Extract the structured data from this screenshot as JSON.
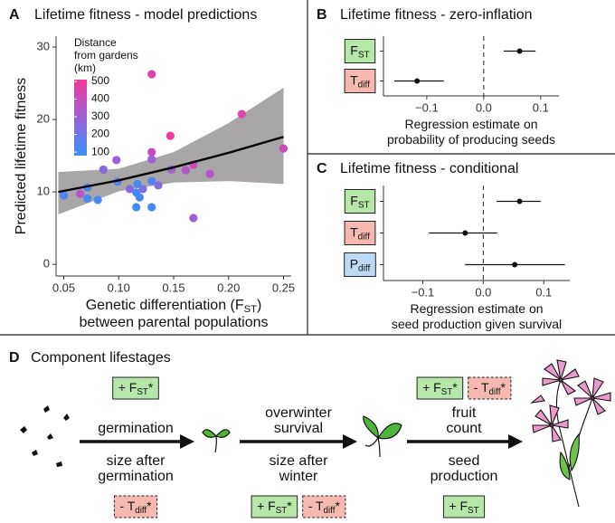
{
  "chart_data": [
    {
      "type": "scatter",
      "panel": "A",
      "title": "Lifetime fitness - model predictions",
      "xlabel": [
        {
          "text": "Genetic differentiation (F",
          "sub": "ST",
          "suffix": ")"
        },
        {
          "text": "between parental populations"
        }
      ],
      "ylabel": "Predicted lifetime fitness",
      "xlim": [
        0.043,
        0.257
      ],
      "xticks": [
        {
          "value": 0.05,
          "label": "0.05"
        },
        {
          "value": 0.1,
          "label": "0.10"
        },
        {
          "value": 0.15,
          "label": "0.15"
        },
        {
          "value": 0.2,
          "label": "0.20"
        },
        {
          "value": 0.25,
          "label": "0.25"
        }
      ],
      "ylim": [
        -1.6,
        31.5
      ],
      "yticks": [
        0,
        10,
        20,
        30
      ],
      "x": [
        0.05,
        0.065,
        0.0715,
        0.0715,
        0.081,
        0.086,
        0.098,
        0.099,
        0.11,
        0.116,
        0.117,
        0.116,
        0.119,
        0.122,
        0.13,
        0.13,
        0.13,
        0.13,
        0.13,
        0.136,
        0.147,
        0.148,
        0.161,
        0.168,
        0.168,
        0.183,
        0.212,
        0.25
      ],
      "y": [
        9.5,
        9.75,
        10.6,
        9.1,
        8.9,
        13.1,
        14.4,
        11.4,
        10.4,
        9.9,
        11.1,
        7.9,
        9.25,
        10.4,
        7.9,
        26.25,
        15.5,
        14.5,
        11.5,
        10.9,
        17.75,
        13.1,
        13,
        13.75,
        6.4,
        12.5,
        20.75,
        16
      ],
      "distance": [
        150,
        350,
        150,
        120,
        130,
        250,
        300,
        150,
        250,
        120,
        130,
        110,
        120,
        230,
        120,
        450,
        400,
        300,
        150,
        250,
        500,
        300,
        350,
        400,
        300,
        350,
        450,
        400
      ],
      "legend_title": [
        "Distance",
        "from gardens",
        "(km)"
      ],
      "color_lim": [
        80,
        510
      ],
      "color_ticks": [
        100,
        200,
        300,
        400,
        500
      ],
      "color_stops": [
        {
          "value": 100,
          "color": "#3a8ff5"
        },
        {
          "value": 300,
          "color": "#a05fd6"
        },
        {
          "value": 500,
          "color": "#f03a9c"
        }
      ],
      "fit": {
        "x": [
          0.045,
          0.1,
          0.15,
          0.2,
          0.25
        ],
        "y": [
          10,
          11.6,
          13.4,
          15.4,
          17.6
        ],
        "lower": [
          6.9,
          10.1,
          11.3,
          11.5,
          11.1
        ],
        "upper": [
          12.75,
          13.2,
          15.5,
          19.5,
          24.4
        ],
        "color": "#000",
        "band_color": "#a8a6a6"
      }
    },
    {
      "type": "dot",
      "panel": "B",
      "title": "Lifetime fitness - zero-inflation",
      "xlabel": [
        {
          "text": "Regression estimate on"
        },
        {
          "text": "probability of producing seeds"
        }
      ],
      "categories": [
        "F",
        "T"
      ],
      "category_subscripts": [
        "ST",
        "diff"
      ],
      "category_colors": [
        "#b6e6a8",
        "#f6b9b1"
      ],
      "values": [
        0.063,
        -0.117
      ],
      "lower": [
        0.035,
        -0.157
      ],
      "upper": [
        0.091,
        -0.07
      ],
      "xlim": [
        -0.176,
        0.132
      ],
      "xticks": [
        {
          "value": -0.1,
          "label": "−0.1"
        },
        {
          "value": 0,
          "label": "0.0"
        },
        0.1
      ],
      "vline": 0
    },
    {
      "type": "dot",
      "panel": "C",
      "title": "Lifetime fitness - conditional",
      "xlabel": [
        {
          "text": "Regression estimate on"
        },
        {
          "text": "seed production given survival"
        }
      ],
      "categories": [
        "F",
        "T",
        "P"
      ],
      "category_subscripts": [
        "ST",
        "diff",
        "diff"
      ],
      "category_colors": [
        "#b6e6a8",
        "#f6b9b1",
        "#bcdaf3"
      ],
      "values": [
        0.06,
        -0.03,
        0.052
      ],
      "lower": [
        0.022,
        -0.09,
        -0.03
      ],
      "upper": [
        0.095,
        0.023,
        0.135
      ],
      "xlim": [
        -0.165,
        0.143
      ],
      "xticks": [
        {
          "value": -0.1,
          "label": "−0.1"
        },
        {
          "value": 0,
          "label": "0.0"
        },
        0.1
      ],
      "vline": 0
    }
  ],
  "diagram": {
    "panel": "D",
    "title": "Component lifestages",
    "stages": [
      {
        "above": [
          "germination"
        ],
        "below": [
          "size after",
          "germination"
        ],
        "top_boxes": [
          {
            "text": "+ F",
            "sub": "ST",
            "suffix": "*",
            "kind": "green"
          }
        ],
        "bottom_boxes": [
          {
            "text": "- T",
            "sub": "diff",
            "suffix": "*",
            "kind": "pink"
          }
        ]
      },
      {
        "above": [
          "overwinter",
          "survival"
        ],
        "below": [
          "size after",
          "winter"
        ],
        "bottom_boxes": [
          {
            "text": "+ F",
            "sub": "ST",
            "suffix": "*",
            "kind": "green"
          },
          {
            "text": "- T",
            "sub": "diff",
            "suffix": "*",
            "kind": "pink"
          }
        ]
      },
      {
        "above": [
          "fruit",
          "count"
        ],
        "below": [
          "seed",
          "production"
        ],
        "top_boxes": [
          {
            "text": "+ F",
            "sub": "ST",
            "suffix": "*",
            "kind": "green"
          },
          {
            "text": "- T",
            "sub": "diff",
            "suffix": "*",
            "kind": "pink"
          }
        ],
        "bottom_boxes": [
          {
            "text": "+ F",
            "sub": "ST",
            "kind": "green"
          }
        ]
      }
    ]
  }
}
